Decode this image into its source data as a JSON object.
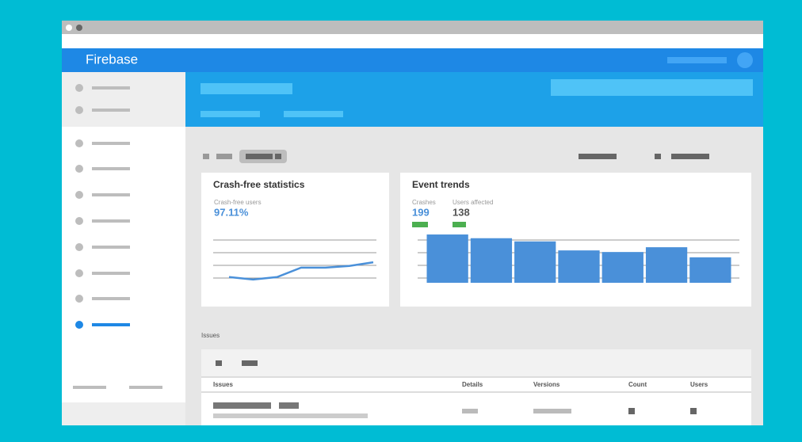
{
  "header": {
    "brand": "Firebase"
  },
  "crash_card": {
    "title": "Crash-free statistics",
    "metric_label": "Crash-free users",
    "metric_value": "97.11%",
    "chart_data": {
      "type": "line",
      "color": "#4a90d9",
      "values": [
        10,
        4,
        10,
        33,
        33,
        37,
        46
      ],
      "ylim": [
        0,
        100
      ],
      "grid": true
    }
  },
  "event_card": {
    "title": "Event trends",
    "metrics": [
      {
        "label": "Crashes",
        "value": "199"
      },
      {
        "label": "Users affected",
        "value": "138"
      }
    ],
    "chart_data": {
      "type": "bar",
      "color": "#4a90d9",
      "values": [
        91,
        84,
        78,
        61,
        58,
        67,
        48
      ],
      "ylim": [
        0,
        100
      ],
      "grid": true
    }
  },
  "issues": {
    "section_label": "Issues",
    "columns": [
      "Issues",
      "Details",
      "Versions",
      "Count",
      "Users"
    ]
  }
}
